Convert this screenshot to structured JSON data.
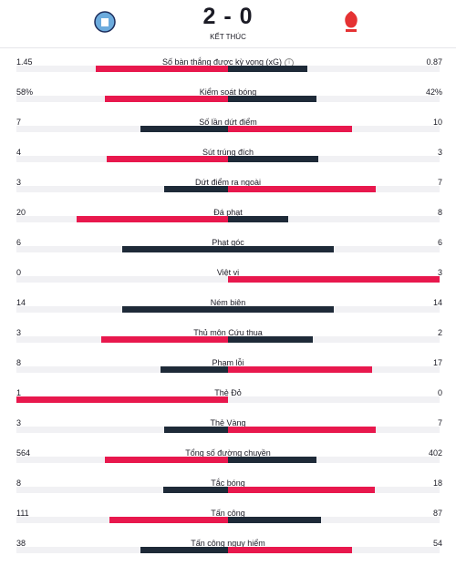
{
  "header": {
    "score": "2 - 0",
    "status": "KẾT THÚC"
  },
  "stats": [
    {
      "name": "Số bàn thắng được kỳ vọng (xG)",
      "home": 1.45,
      "away": 0.87
    },
    {
      "name": "Kiểm soát bóng",
      "home": 58,
      "away": 42,
      "home_label": "58%",
      "away_label": "42%"
    },
    {
      "name": "Số lần dứt điểm",
      "home": 7,
      "away": 10
    },
    {
      "name": "Sút trúng đích",
      "home": 4,
      "away": 3
    },
    {
      "name": "Dứt điểm ra ngoài",
      "home": 3,
      "away": 7
    },
    {
      "name": "Đá phạt",
      "home": 20,
      "away": 8
    },
    {
      "name": "Phạt góc",
      "home": 6,
      "away": 6
    },
    {
      "name": "Việt vị",
      "home": 0,
      "away": 3
    },
    {
      "name": "Ném biên",
      "home": 14,
      "away": 14
    },
    {
      "name": "Thủ môn Cứu thua",
      "home": 3,
      "away": 2
    },
    {
      "name": "Phạm lỗi",
      "home": 8,
      "away": 17
    },
    {
      "name": "Thẻ Đỏ",
      "home": 1,
      "away": 0
    },
    {
      "name": "Thẻ Vàng",
      "home": 3,
      "away": 7
    },
    {
      "name": "Tổng số đường chuyền",
      "home": 564,
      "away": 402
    },
    {
      "name": "Tắc bóng",
      "home": 8,
      "away": 18
    },
    {
      "name": "Tấn công",
      "home": 111,
      "away": 87
    },
    {
      "name": "Tấn công nguy hiểm",
      "home": 38,
      "away": 54
    }
  ]
}
